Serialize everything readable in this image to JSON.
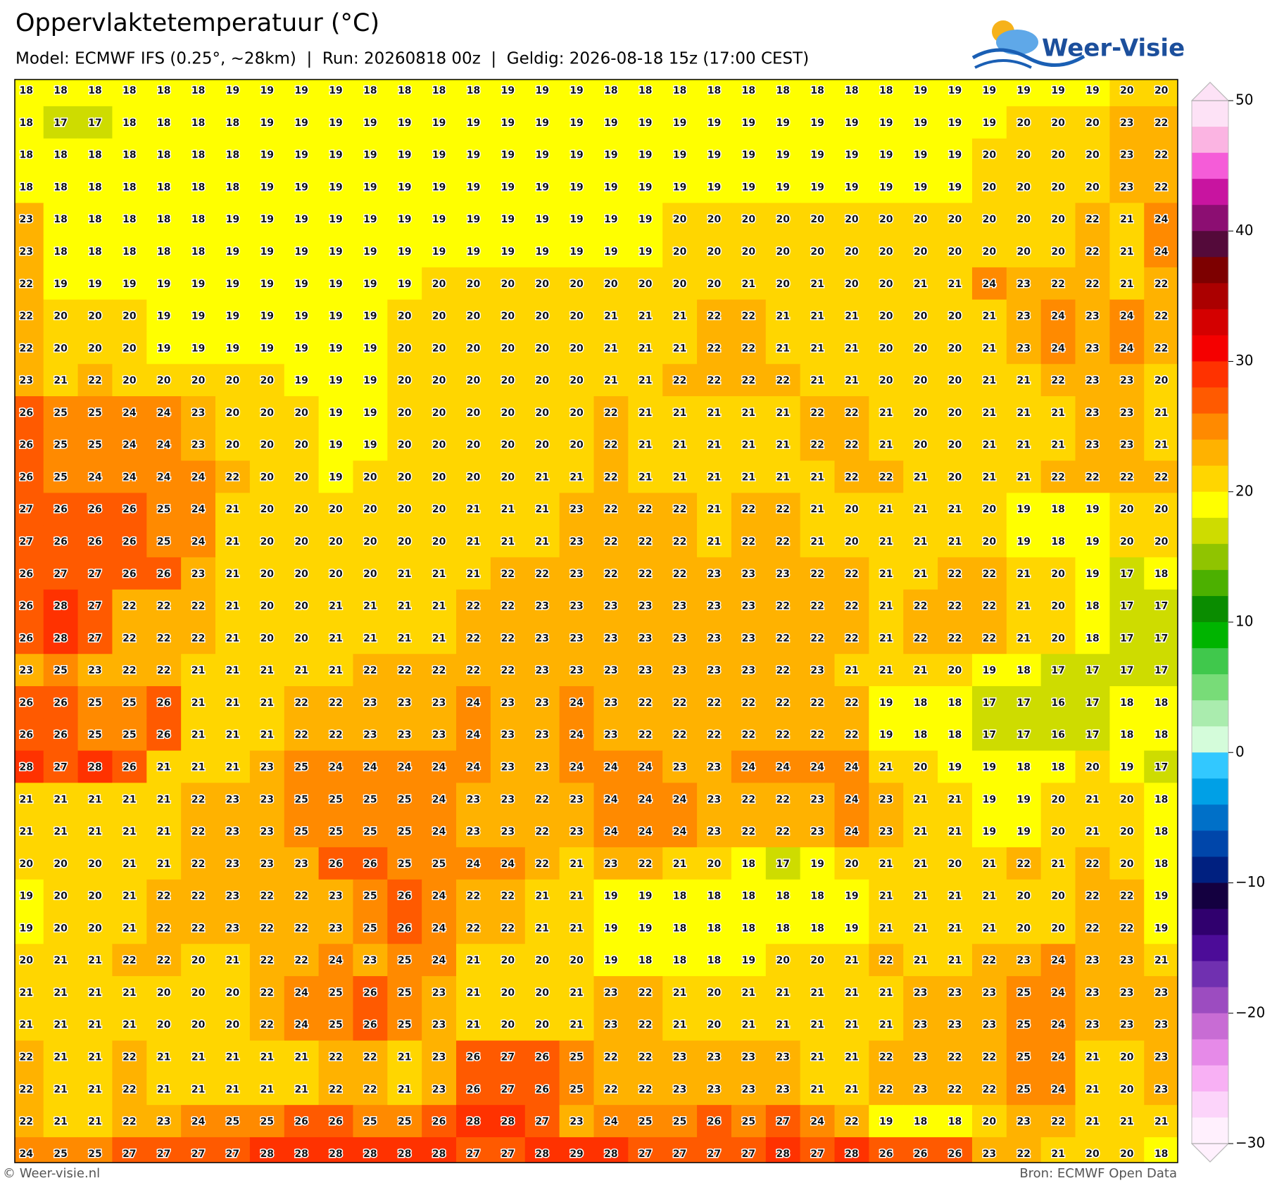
{
  "header": {
    "title": "Oppervlaktetemperatuur (°C)",
    "subtitle": "Model: ECMWF IFS (0.25°, ~28km)  |  Run: 20260818 00z  |  Geldig: 2026-08-18 15z (17:00 CEST)",
    "logo": "Weer-Visie"
  },
  "map": {
    "grid": [
      [
        18,
        18,
        18,
        18,
        18,
        18,
        19,
        19,
        19,
        19,
        18,
        18,
        18,
        18,
        19,
        19,
        19,
        18,
        18,
        18,
        18,
        18,
        18,
        18,
        18,
        18,
        19,
        19,
        19,
        19,
        19,
        19,
        20,
        20
      ],
      [
        18,
        17,
        17,
        18,
        18,
        18,
        18,
        19,
        19,
        19,
        19,
        19,
        19,
        19,
        19,
        19,
        19,
        19,
        19,
        19,
        19,
        19,
        19,
        19,
        19,
        19,
        19,
        19,
        19,
        20,
        20,
        20,
        23,
        22
      ],
      [
        18,
        18,
        18,
        18,
        18,
        18,
        18,
        19,
        19,
        19,
        19,
        19,
        19,
        19,
        19,
        19,
        19,
        19,
        19,
        19,
        19,
        19,
        19,
        19,
        19,
        19,
        19,
        19,
        20,
        20,
        20,
        20,
        23,
        22
      ],
      [
        18,
        18,
        18,
        18,
        18,
        18,
        18,
        19,
        19,
        19,
        19,
        19,
        19,
        19,
        19,
        19,
        19,
        19,
        19,
        19,
        19,
        19,
        19,
        19,
        19,
        19,
        19,
        19,
        20,
        20,
        20,
        20,
        23,
        22
      ],
      [
        23,
        18,
        18,
        18,
        18,
        18,
        19,
        19,
        19,
        19,
        19,
        19,
        19,
        19,
        19,
        19,
        19,
        19,
        19,
        20,
        20,
        20,
        20,
        20,
        20,
        20,
        20,
        20,
        20,
        20,
        20,
        22,
        21,
        24
      ],
      [
        23,
        18,
        18,
        18,
        18,
        18,
        19,
        19,
        19,
        19,
        19,
        19,
        19,
        19,
        19,
        19,
        19,
        19,
        19,
        20,
        20,
        20,
        20,
        20,
        20,
        20,
        20,
        20,
        20,
        20,
        20,
        22,
        21,
        24
      ],
      [
        22,
        19,
        19,
        19,
        19,
        19,
        19,
        19,
        19,
        19,
        19,
        19,
        20,
        20,
        20,
        20,
        20,
        20,
        20,
        20,
        20,
        21,
        20,
        21,
        20,
        20,
        21,
        21,
        24,
        23,
        22,
        22,
        21,
        22
      ],
      [
        22,
        20,
        20,
        20,
        19,
        19,
        19,
        19,
        19,
        19,
        19,
        20,
        20,
        20,
        20,
        20,
        20,
        21,
        21,
        21,
        22,
        22,
        21,
        21,
        21,
        20,
        20,
        20,
        21,
        23,
        24,
        23,
        24,
        22
      ],
      [
        22,
        20,
        20,
        20,
        19,
        19,
        19,
        19,
        19,
        19,
        19,
        20,
        20,
        20,
        20,
        20,
        20,
        21,
        21,
        21,
        22,
        22,
        21,
        21,
        21,
        20,
        20,
        20,
        21,
        23,
        24,
        23,
        24,
        22
      ],
      [
        23,
        21,
        22,
        20,
        20,
        20,
        20,
        20,
        19,
        19,
        19,
        20,
        20,
        20,
        20,
        20,
        20,
        21,
        21,
        22,
        22,
        22,
        22,
        21,
        21,
        20,
        20,
        20,
        21,
        21,
        22,
        23,
        23,
        20
      ],
      [
        26,
        25,
        25,
        24,
        24,
        23,
        20,
        20,
        20,
        19,
        19,
        20,
        20,
        20,
        20,
        20,
        20,
        22,
        21,
        21,
        21,
        21,
        21,
        22,
        22,
        21,
        20,
        20,
        21,
        21,
        21,
        23,
        23,
        21
      ],
      [
        26,
        25,
        25,
        24,
        24,
        23,
        20,
        20,
        20,
        19,
        19,
        20,
        20,
        20,
        20,
        20,
        20,
        22,
        21,
        21,
        21,
        21,
        21,
        22,
        22,
        21,
        20,
        20,
        21,
        21,
        21,
        23,
        23,
        21
      ],
      [
        26,
        25,
        24,
        24,
        24,
        24,
        22,
        20,
        20,
        19,
        20,
        20,
        20,
        20,
        20,
        21,
        21,
        22,
        21,
        21,
        21,
        21,
        21,
        21,
        22,
        22,
        21,
        20,
        21,
        21,
        22,
        22,
        22,
        22
      ],
      [
        27,
        26,
        26,
        26,
        25,
        24,
        21,
        20,
        20,
        20,
        20,
        20,
        20,
        21,
        21,
        21,
        23,
        22,
        22,
        22,
        21,
        22,
        22,
        21,
        20,
        21,
        21,
        21,
        20,
        19,
        18,
        19,
        20,
        20
      ],
      [
        27,
        26,
        26,
        26,
        25,
        24,
        21,
        20,
        20,
        20,
        20,
        20,
        20,
        21,
        21,
        21,
        23,
        22,
        22,
        22,
        21,
        22,
        22,
        21,
        20,
        21,
        21,
        21,
        20,
        19,
        18,
        19,
        20,
        20
      ],
      [
        26,
        27,
        27,
        26,
        26,
        23,
        21,
        20,
        20,
        20,
        20,
        21,
        21,
        21,
        22,
        22,
        23,
        22,
        22,
        22,
        23,
        23,
        23,
        22,
        22,
        21,
        21,
        22,
        22,
        21,
        20,
        19,
        17,
        18
      ],
      [
        26,
        28,
        27,
        22,
        22,
        22,
        21,
        20,
        20,
        21,
        21,
        21,
        21,
        22,
        22,
        23,
        23,
        23,
        23,
        23,
        23,
        23,
        22,
        22,
        22,
        21,
        22,
        22,
        22,
        21,
        20,
        18,
        17,
        17
      ],
      [
        26,
        28,
        27,
        22,
        22,
        22,
        21,
        20,
        20,
        21,
        21,
        21,
        21,
        22,
        22,
        23,
        23,
        23,
        23,
        23,
        23,
        23,
        22,
        22,
        22,
        21,
        22,
        22,
        22,
        21,
        20,
        18,
        17,
        17
      ],
      [
        23,
        25,
        23,
        22,
        22,
        21,
        21,
        21,
        21,
        21,
        22,
        22,
        22,
        22,
        22,
        23,
        23,
        23,
        23,
        23,
        23,
        23,
        22,
        23,
        21,
        21,
        21,
        20,
        19,
        18,
        17,
        17,
        17,
        17
      ],
      [
        26,
        26,
        25,
        25,
        26,
        21,
        21,
        21,
        22,
        22,
        23,
        23,
        23,
        24,
        23,
        23,
        24,
        23,
        22,
        22,
        22,
        22,
        22,
        22,
        22,
        19,
        18,
        18,
        17,
        17,
        16,
        17,
        18,
        18
      ],
      [
        26,
        26,
        25,
        25,
        26,
        21,
        21,
        21,
        22,
        22,
        23,
        23,
        23,
        24,
        23,
        23,
        24,
        23,
        22,
        22,
        22,
        22,
        22,
        22,
        22,
        19,
        18,
        18,
        17,
        17,
        16,
        17,
        18,
        18
      ],
      [
        28,
        27,
        28,
        26,
        21,
        21,
        21,
        23,
        25,
        24,
        24,
        24,
        24,
        24,
        23,
        23,
        24,
        24,
        24,
        23,
        23,
        24,
        24,
        24,
        24,
        21,
        20,
        19,
        19,
        18,
        18,
        20,
        19,
        17
      ],
      [
        21,
        21,
        21,
        21,
        21,
        22,
        23,
        23,
        25,
        25,
        25,
        25,
        24,
        23,
        23,
        22,
        23,
        24,
        24,
        24,
        23,
        22,
        22,
        23,
        24,
        23,
        21,
        21,
        19,
        19,
        20,
        21,
        20,
        18
      ],
      [
        21,
        21,
        21,
        21,
        21,
        22,
        23,
        23,
        25,
        25,
        25,
        25,
        24,
        23,
        23,
        22,
        23,
        24,
        24,
        24,
        23,
        22,
        22,
        23,
        24,
        23,
        21,
        21,
        19,
        19,
        20,
        21,
        20,
        18
      ],
      [
        20,
        20,
        20,
        21,
        21,
        22,
        23,
        23,
        23,
        26,
        26,
        25,
        25,
        24,
        24,
        22,
        21,
        23,
        22,
        21,
        20,
        18,
        17,
        19,
        20,
        21,
        21,
        20,
        21,
        22,
        21,
        22,
        20,
        18
      ],
      [
        19,
        20,
        20,
        21,
        22,
        22,
        23,
        22,
        22,
        23,
        25,
        26,
        24,
        22,
        22,
        21,
        21,
        19,
        19,
        18,
        18,
        18,
        18,
        18,
        19,
        21,
        21,
        21,
        21,
        20,
        20,
        22,
        22,
        19
      ],
      [
        19,
        20,
        20,
        21,
        22,
        22,
        23,
        22,
        22,
        23,
        25,
        26,
        24,
        22,
        22,
        21,
        21,
        19,
        19,
        18,
        18,
        18,
        18,
        18,
        19,
        21,
        21,
        21,
        21,
        20,
        20,
        22,
        22,
        19
      ],
      [
        20,
        21,
        21,
        22,
        22,
        20,
        21,
        22,
        22,
        24,
        23,
        25,
        24,
        21,
        20,
        20,
        20,
        19,
        18,
        18,
        18,
        19,
        20,
        20,
        21,
        22,
        21,
        21,
        22,
        23,
        24,
        23,
        23,
        21
      ],
      [
        21,
        21,
        21,
        21,
        20,
        20,
        20,
        22,
        24,
        25,
        26,
        25,
        23,
        21,
        20,
        20,
        21,
        23,
        22,
        21,
        20,
        21,
        21,
        21,
        21,
        21,
        23,
        23,
        23,
        25,
        24,
        23,
        23,
        23
      ],
      [
        21,
        21,
        21,
        21,
        20,
        20,
        20,
        22,
        24,
        25,
        26,
        25,
        23,
        21,
        20,
        20,
        21,
        23,
        22,
        21,
        20,
        21,
        21,
        21,
        21,
        21,
        23,
        23,
        23,
        25,
        24,
        23,
        23,
        23
      ],
      [
        22,
        21,
        21,
        22,
        21,
        21,
        21,
        21,
        21,
        22,
        22,
        21,
        23,
        26,
        27,
        26,
        25,
        22,
        22,
        23,
        23,
        23,
        23,
        21,
        21,
        22,
        23,
        22,
        22,
        25,
        24,
        21,
        20,
        23
      ],
      [
        22,
        21,
        21,
        22,
        21,
        21,
        21,
        21,
        21,
        22,
        22,
        21,
        23,
        26,
        27,
        26,
        25,
        22,
        22,
        23,
        23,
        23,
        23,
        21,
        21,
        22,
        23,
        22,
        22,
        25,
        24,
        21,
        20,
        23
      ],
      [
        22,
        21,
        21,
        22,
        23,
        24,
        25,
        25,
        26,
        26,
        25,
        25,
        26,
        28,
        28,
        27,
        23,
        24,
        25,
        25,
        26,
        25,
        27,
        24,
        22,
        19,
        18,
        18,
        20,
        23,
        22,
        21,
        21,
        21
      ],
      [
        24,
        25,
        25,
        27,
        27,
        27,
        27,
        28,
        28,
        28,
        28,
        28,
        28,
        27,
        27,
        28,
        29,
        28,
        27,
        27,
        27,
        27,
        28,
        27,
        28,
        26,
        26,
        26,
        23,
        22,
        21,
        20,
        20,
        18
      ]
    ]
  },
  "colorbar": {
    "range": [
      -30,
      50
    ],
    "step": 2,
    "ticks": [
      50,
      40,
      30,
      20,
      10,
      0,
      {
        "value": -10,
        "label": "−10"
      },
      {
        "value": -20,
        "label": "−20"
      },
      {
        "value": -30,
        "label": "−30"
      }
    ],
    "colors": [
      "#fde2f6",
      "#fbb4e2",
      "#f55cd8",
      "#c814a0",
      "#8c0e72",
      "#540a3a",
      "#7d0000",
      "#ab0000",
      "#d40000",
      "#f50000",
      "#ff3200",
      "#ff5a00",
      "#ff8a00",
      "#ffb200",
      "#ffd600",
      "#ffff00",
      "#cedc00",
      "#90c400",
      "#4cb000",
      "#0a8c00",
      "#00b400",
      "#40c84c",
      "#78dc78",
      "#aaecae",
      "#d4fcda",
      "#32c8ff",
      "#00a0e6",
      "#0070c8",
      "#0046aa",
      "#002080",
      "#140040",
      "#30006e",
      "#4c0c98",
      "#7030b0",
      "#9c4cc0",
      "#c86cd4",
      "#e68ae8",
      "#f8b0f4",
      "#fcd4fa",
      "#fff0fd"
    ]
  },
  "footer": {
    "left": "© Weer-visie.nl",
    "right": "Bron: ECMWF Open Data"
  }
}
